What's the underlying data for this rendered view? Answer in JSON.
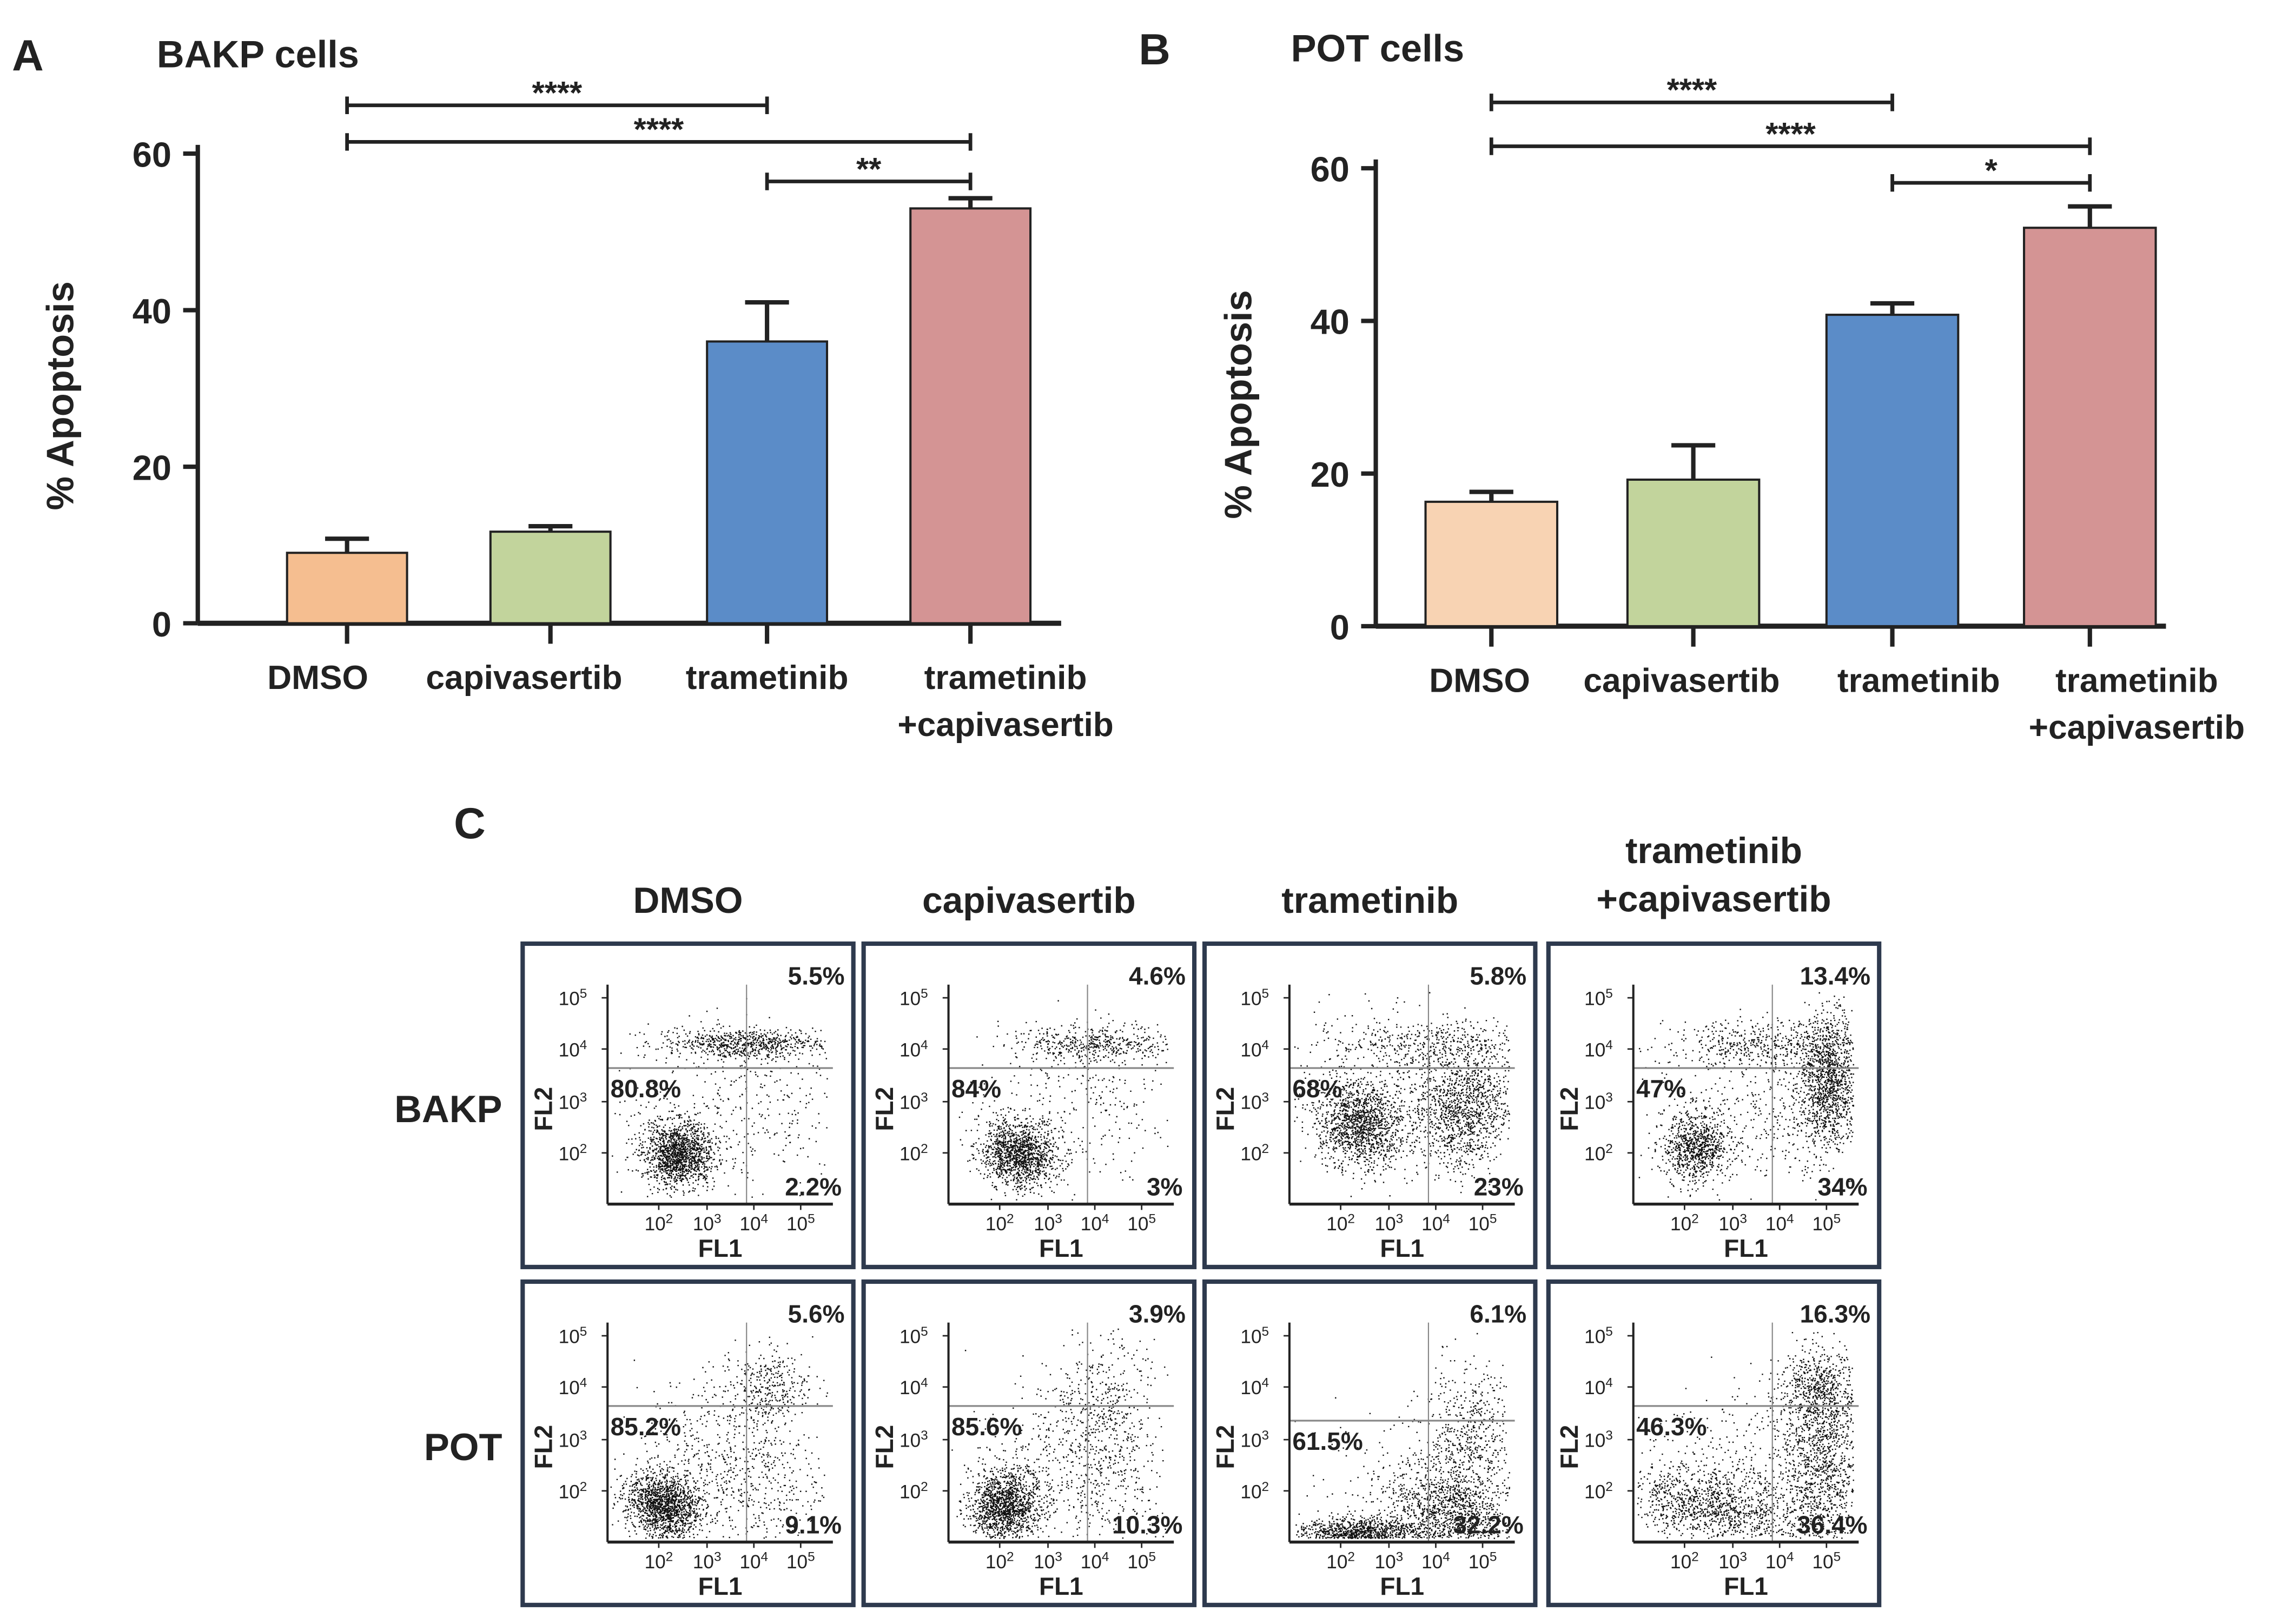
{
  "chart_data": [
    {
      "type": "bar",
      "panel_letter": "A",
      "title": "BAKP cells",
      "ylabel": "% Apoptosis",
      "ylim": [
        0,
        60
      ],
      "yticks": [
        "0",
        "20",
        "40",
        "60"
      ],
      "categories": [
        "DMSO",
        "capivasertib",
        "trametinib",
        "trametinib\n+capivasertib"
      ],
      "category_lines": [
        [
          "DMSO"
        ],
        [
          "capivasertib"
        ],
        [
          "trametinib"
        ],
        [
          "trametinib",
          "+capivasertib"
        ]
      ],
      "values": [
        9.0,
        11.7,
        36.0,
        53.0
      ],
      "errors": [
        1.8,
        0.7,
        5.0,
        1.3
      ],
      "colors": [
        "#f5be90",
        "#c2d49c",
        "#5b8cc8",
        "#d49494"
      ],
      "significance": [
        {
          "from": 0,
          "to": 2,
          "label": "****"
        },
        {
          "from": 0,
          "to": 3,
          "label": "****"
        },
        {
          "from": 2,
          "to": 3,
          "label": "**"
        }
      ]
    },
    {
      "type": "bar",
      "panel_letter": "B",
      "title": "POT cells",
      "ylabel": "% Apoptosis",
      "ylim": [
        0,
        60
      ],
      "yticks": [
        "0",
        "20",
        "40",
        "60"
      ],
      "categories": [
        "DMSO",
        "capivasertib",
        "trametinib",
        "trametinib\n+capivasertib"
      ],
      "category_lines": [
        [
          "DMSO"
        ],
        [
          "capivasertib"
        ],
        [
          "trametinib"
        ],
        [
          "trametinib",
          "+capivasertib"
        ]
      ],
      "values": [
        16.3,
        19.2,
        40.8,
        52.2
      ],
      "errors": [
        1.3,
        4.5,
        1.5,
        2.8
      ],
      "colors": [
        "#f8d3b3",
        "#c2d49c",
        "#5b8cc8",
        "#d49494"
      ],
      "significance": [
        {
          "from": 0,
          "to": 2,
          "label": "****"
        },
        {
          "from": 0,
          "to": 3,
          "label": "****"
        },
        {
          "from": 2,
          "to": 3,
          "label": "*"
        }
      ]
    },
    {
      "type": "scatter",
      "panel_letter": "C",
      "columns": [
        [
          "DMSO"
        ],
        [
          "capivasertib"
        ],
        [
          "trametinib"
        ],
        [
          "trametinib",
          "+capivasertib"
        ]
      ],
      "rows": [
        "BAKP",
        "POT"
      ],
      "xlabel": "FL1",
      "ylabel": "FL2",
      "ticks": [
        "2",
        "3",
        "4",
        "5"
      ],
      "tick_base": "10",
      "quadrants": [
        [
          {
            "upper_right": "5.5%",
            "lower_left": "80.8%",
            "lower_right": "2.2%"
          },
          {
            "upper_right": "4.6%",
            "lower_left": "84%",
            "lower_right": "3%"
          },
          {
            "upper_right": "5.8%",
            "lower_left": "68%",
            "lower_right": "23%"
          },
          {
            "upper_right": "13.4%",
            "lower_left": "47%",
            "lower_right": "34%"
          }
        ],
        [
          {
            "upper_right": "5.6%",
            "lower_left": "85.2%",
            "lower_right": "9.1%"
          },
          {
            "upper_right": "3.9%",
            "lower_left": "85.6%",
            "lower_right": "10.3%"
          },
          {
            "upper_right": "6.1%",
            "lower_left": "61.5%",
            "lower_right": "32.2%"
          },
          {
            "upper_right": "16.3%",
            "lower_left": "46.3%",
            "lower_right": "36.4%"
          }
        ]
      ]
    }
  ]
}
